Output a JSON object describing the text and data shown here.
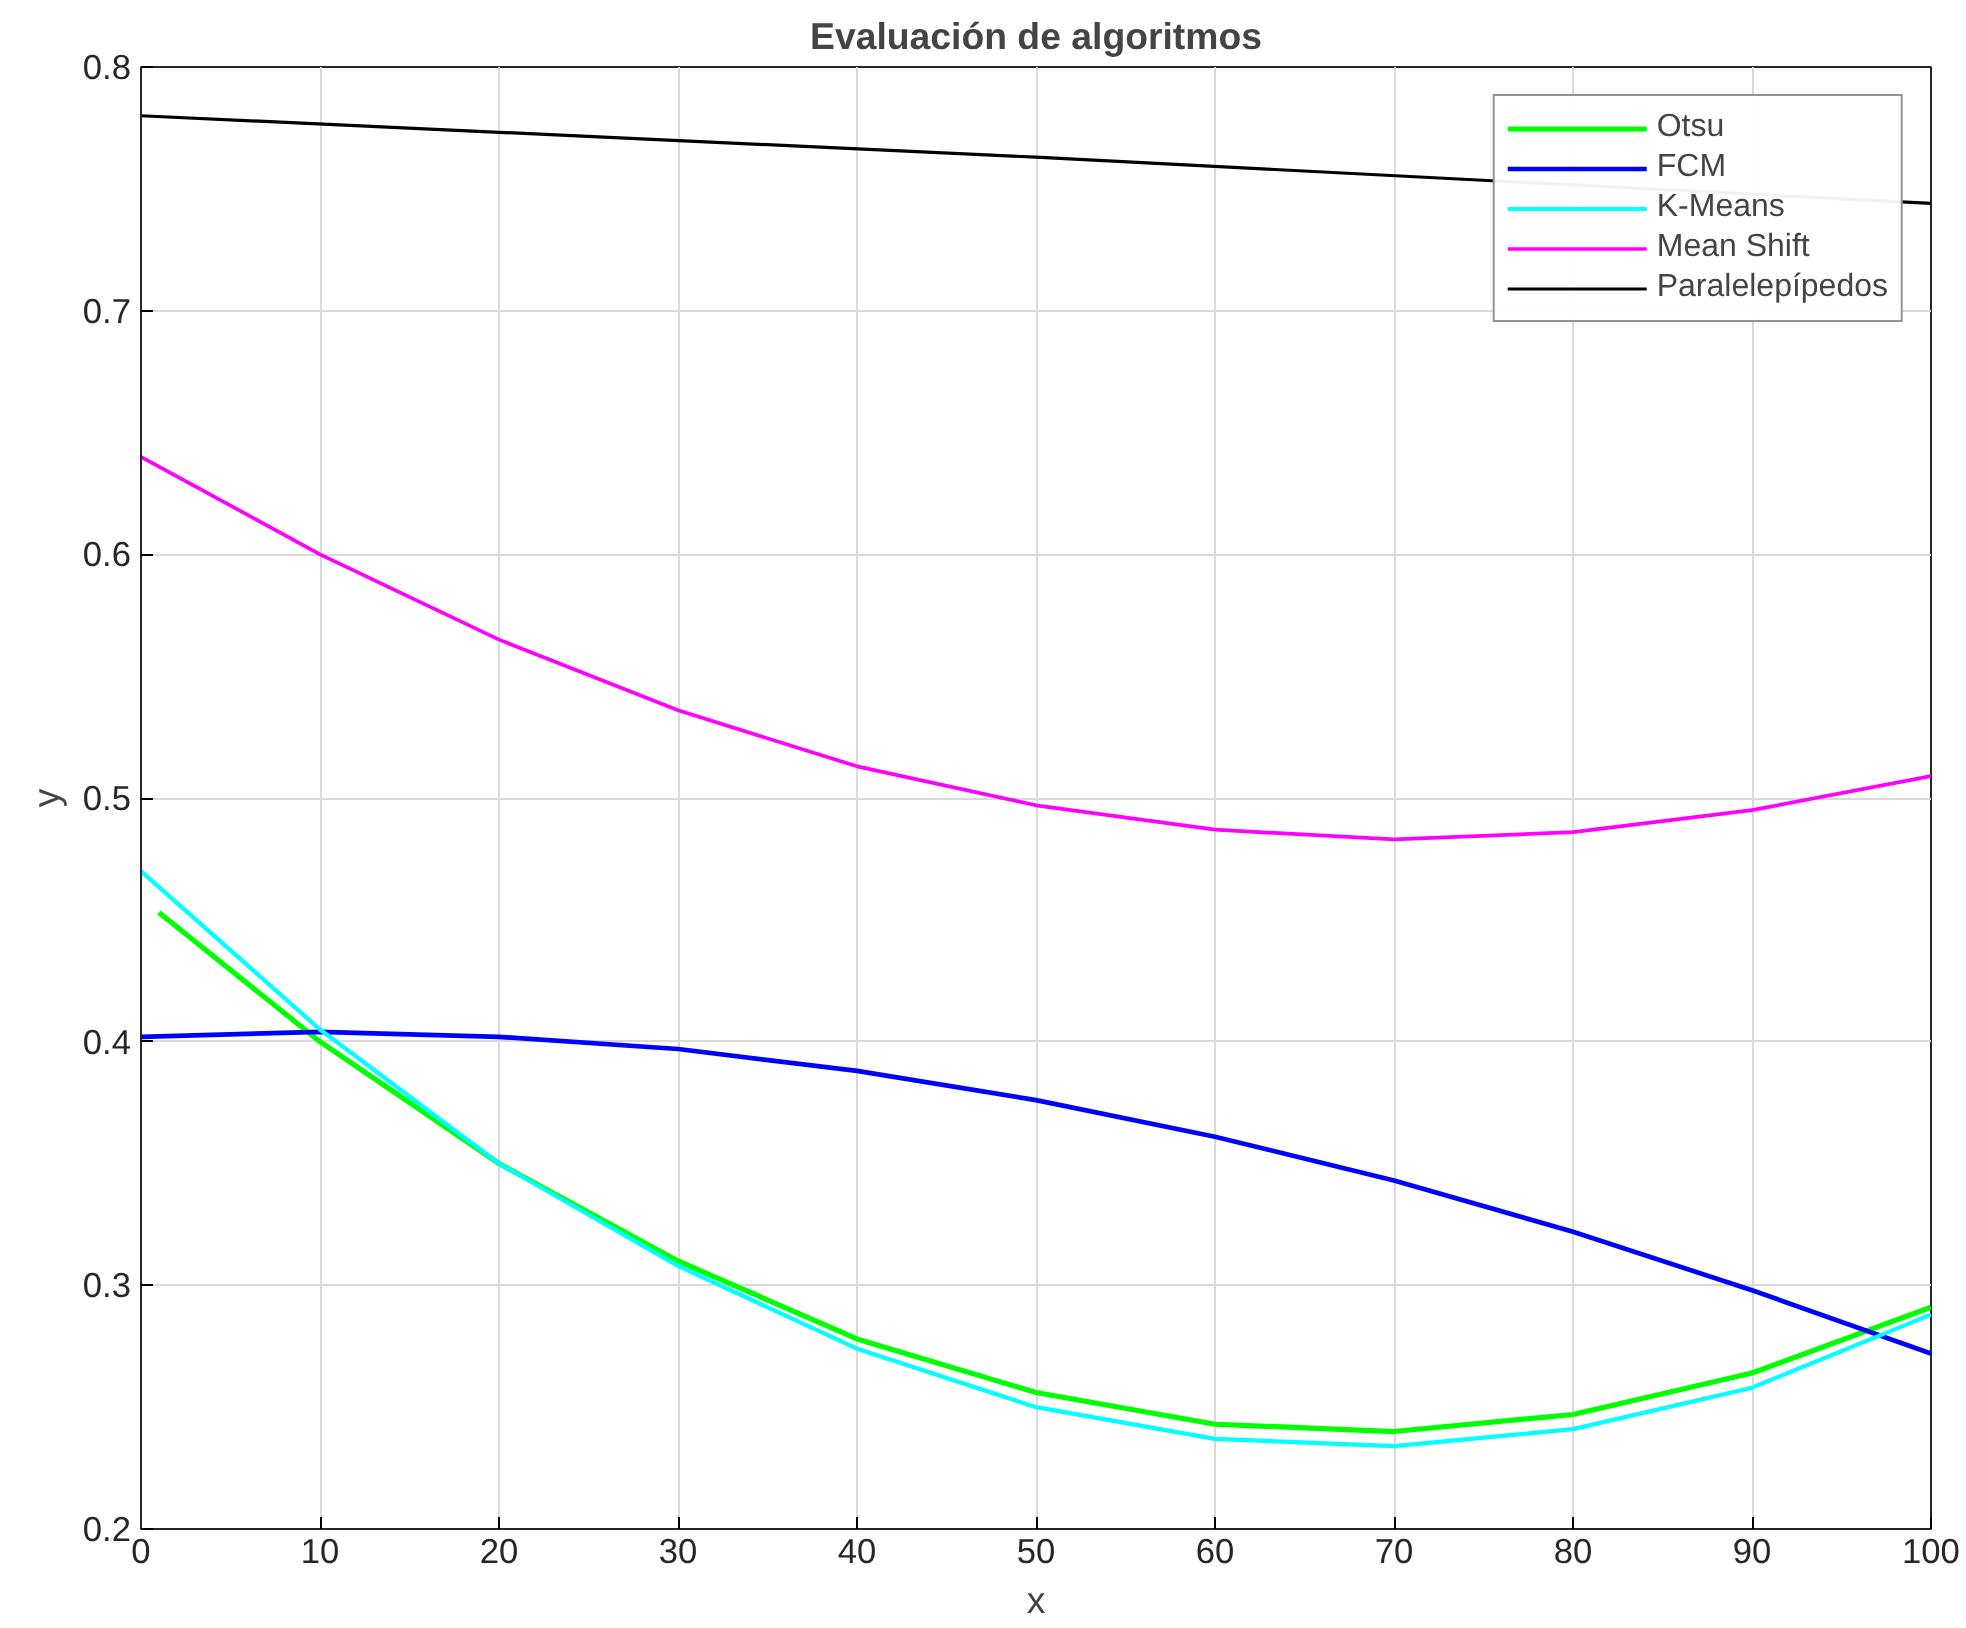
{
  "chart_data": {
    "type": "line",
    "title": "Evaluación de algoritmos",
    "xlabel": "x",
    "ylabel": "y",
    "xlim": [
      0,
      100
    ],
    "ylim": [
      0.2,
      0.8
    ],
    "xticks": [
      0,
      10,
      20,
      30,
      40,
      50,
      60,
      70,
      80,
      90,
      100
    ],
    "yticks": [
      {
        "value": 0.2,
        "label": "0.2"
      },
      {
        "value": 0.3,
        "label": "0.3"
      },
      {
        "value": 0.4,
        "label": "0.4"
      },
      {
        "value": 0.5,
        "label": "0.5"
      },
      {
        "value": 0.6,
        "label": "0.6"
      },
      {
        "value": 0.7,
        "label": "0.7"
      },
      {
        "value": 0.8,
        "label": "0.8"
      }
    ],
    "grid": true,
    "legend": "top right",
    "line_style": "solid",
    "series": [
      {
        "name": "Otsu",
        "color": "#00ff00",
        "x": [
          1,
          10,
          20,
          30,
          40,
          50,
          60,
          70,
          80,
          90,
          100
        ],
        "values": [
          0.453,
          0.4,
          0.35,
          0.31,
          0.278,
          0.256,
          0.243,
          0.24,
          0.247,
          0.264,
          0.291
        ]
      },
      {
        "name": "FCM",
        "color": "#0000ff",
        "x": [
          0,
          10,
          20,
          30,
          40,
          50,
          60,
          70,
          80,
          90,
          100
        ],
        "values": [
          0.402,
          0.404,
          0.402,
          0.397,
          0.388,
          0.376,
          0.361,
          0.343,
          0.322,
          0.298,
          0.272
        ]
      },
      {
        "name": "K-Means",
        "color": "#00ffff",
        "x": [
          0,
          10,
          20,
          30,
          40,
          50,
          60,
          70,
          80,
          90,
          100
        ],
        "values": [
          0.47,
          0.405,
          0.35,
          0.308,
          0.274,
          0.25,
          0.237,
          0.234,
          0.241,
          0.258,
          0.288
        ]
      },
      {
        "name": "Mean Shift",
        "color": "#ff00ff",
        "x": [
          0,
          10,
          20,
          30,
          40,
          50,
          60,
          70,
          80,
          90,
          100
        ],
        "values": [
          0.64,
          0.6,
          0.565,
          0.536,
          0.513,
          0.497,
          0.487,
          0.483,
          0.486,
          0.495,
          0.509
        ]
      },
      {
        "name": "Paralelepípedos",
        "color": "#000000",
        "x": [
          0,
          50,
          100
        ],
        "values": [
          0.78,
          0.763,
          0.744
        ]
      }
    ]
  }
}
